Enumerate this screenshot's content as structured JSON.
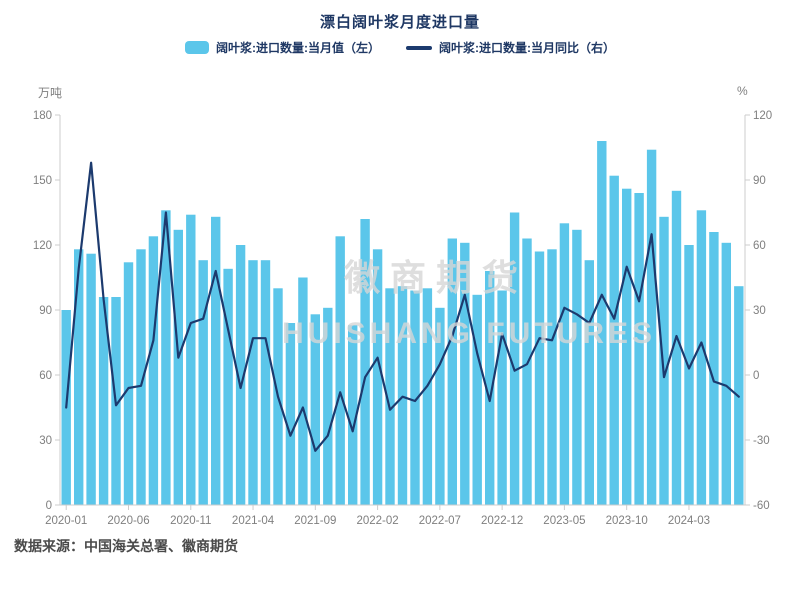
{
  "title": "漂白阔叶浆月度进口量",
  "legend": {
    "bar_label": "阔叶浆:进口数量:当月值（左）",
    "line_label": "阔叶浆:进口数量:当月同比（右）"
  },
  "axes": {
    "left_unit": "万吨",
    "right_unit": "%"
  },
  "watermark": {
    "line1": "徽商期货",
    "line2": "HUISHANG FUTURES"
  },
  "source": "数据来源：中国海关总署、徽商期货",
  "colors": {
    "bar": "#5bc6ea",
    "line": "#1c3a6e",
    "axis_line": "#cccccc",
    "axis_text": "#7f7f7f",
    "title_text": "#1f3864"
  },
  "chart_data": {
    "type": "bar+line",
    "title": "漂白阔叶浆月度进口量",
    "categories": [
      "2020-01",
      "2020-02",
      "2020-03",
      "2020-04",
      "2020-05",
      "2020-06",
      "2020-07",
      "2020-08",
      "2020-09",
      "2020-10",
      "2020-11",
      "2020-12",
      "2021-01",
      "2021-02",
      "2021-03",
      "2021-04",
      "2021-05",
      "2021-06",
      "2021-07",
      "2021-08",
      "2021-09",
      "2021-10",
      "2021-11",
      "2021-12",
      "2022-01",
      "2022-02",
      "2022-03",
      "2022-04",
      "2022-05",
      "2022-06",
      "2022-07",
      "2022-08",
      "2022-09",
      "2022-10",
      "2022-11",
      "2022-12",
      "2023-01",
      "2023-02",
      "2023-03",
      "2023-04",
      "2023-05",
      "2023-06",
      "2023-07",
      "2023-08",
      "2023-09",
      "2023-10",
      "2023-11",
      "2023-12",
      "2024-01",
      "2024-02",
      "2024-03",
      "2024-04",
      "2024-05",
      "2024-06",
      "2024-07"
    ],
    "series": [
      {
        "name": "阔叶浆:进口数量:当月值（左）",
        "type": "bar",
        "axis": "left",
        "unit": "万吨",
        "values": [
          90,
          118,
          116,
          96,
          96,
          112,
          118,
          124,
          136,
          127,
          134,
          113,
          133,
          109,
          120,
          113,
          113,
          100,
          84,
          105,
          88,
          91,
          124,
          83,
          132,
          118,
          100,
          101,
          99,
          100,
          91,
          123,
          121,
          97,
          108,
          99,
          135,
          123,
          117,
          118,
          130,
          127,
          113,
          168,
          152,
          146,
          144,
          164,
          133,
          145,
          120,
          136,
          126,
          121,
          101
        ]
      },
      {
        "name": "阔叶浆:进口数量:当月同比（右）",
        "type": "line",
        "axis": "right",
        "unit": "%",
        "values": [
          -15,
          49,
          98,
          35,
          -14,
          -6,
          -5,
          16,
          75,
          8,
          24,
          26,
          48,
          21,
          -6,
          17,
          17,
          -10,
          -28,
          -15,
          -35,
          -28,
          -8,
          -26,
          -1,
          8,
          -16,
          -10,
          -12,
          -5,
          5,
          18,
          37,
          10,
          -12,
          19,
          2,
          5,
          17,
          16,
          31,
          28,
          24,
          37,
          26,
          50,
          34,
          65,
          -1,
          18,
          3,
          15,
          -3,
          -5,
          -10
        ]
      }
    ],
    "left_axis": {
      "min": 0,
      "max": 180,
      "ticks": [
        0,
        30,
        60,
        90,
        120,
        150,
        180
      ]
    },
    "right_axis": {
      "min": -60,
      "max": 120,
      "ticks": [
        -60,
        -30,
        0,
        30,
        60,
        90,
        120
      ]
    },
    "x_tick_indices": [
      0,
      5,
      10,
      15,
      20,
      25,
      30,
      35,
      40,
      45,
      50
    ],
    "grid": false,
    "legend_position": "top"
  }
}
